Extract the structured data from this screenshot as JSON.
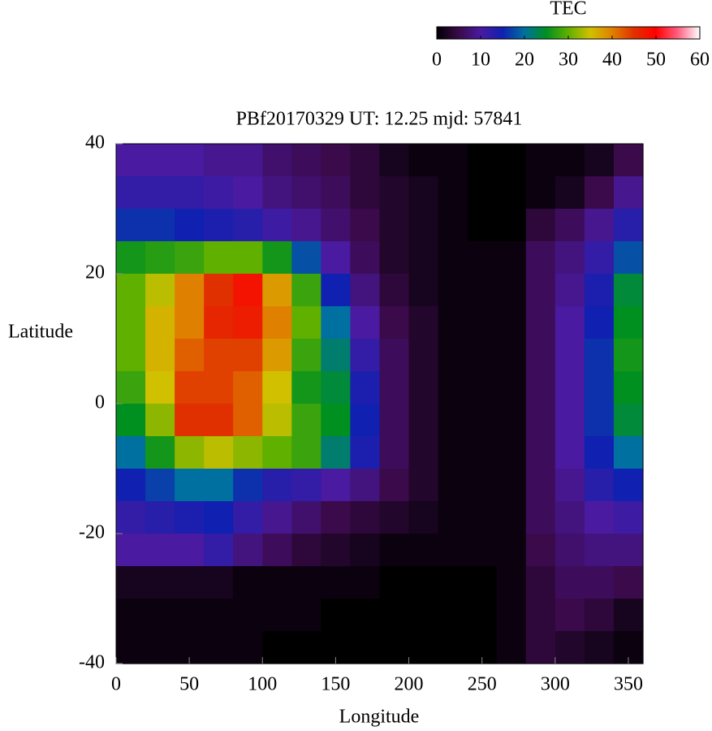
{
  "chart_data": {
    "type": "heatmap",
    "title": "PBf20170329  UT: 12.25  mjd: 57841",
    "x_label": "Longitude",
    "y_label": "Latitude",
    "xlim": [
      0,
      360
    ],
    "ylim": [
      -40,
      40
    ],
    "xticks": [
      0,
      50,
      100,
      150,
      200,
      250,
      300,
      350
    ],
    "yticks": [
      -40,
      -20,
      0,
      20,
      40
    ],
    "x": [
      10,
      30,
      50,
      70,
      90,
      110,
      130,
      150,
      170,
      190,
      210,
      230,
      250,
      270,
      290,
      310,
      330,
      350
    ],
    "y": [
      37.5,
      32.5,
      27.5,
      22.5,
      17.5,
      12.5,
      7.5,
      2.5,
      -2.5,
      -7.5,
      -12.5,
      -17.5,
      -22.5,
      -27.5,
      -32.5,
      -37.5
    ],
    "z": [
      [
        10,
        10,
        10,
        9,
        9,
        7,
        6,
        5,
        4,
        2,
        1,
        1,
        0,
        0,
        1,
        1,
        2,
        5
      ],
      [
        12,
        12,
        12,
        11,
        10,
        8,
        7,
        6,
        4,
        3,
        2,
        1,
        0,
        0,
        1,
        2,
        5,
        9
      ],
      [
        16,
        16,
        15,
        14,
        13,
        11,
        9,
        7,
        5,
        3,
        2,
        1,
        0,
        0,
        4,
        6,
        9,
        13
      ],
      [
        26,
        27,
        28,
        30,
        30,
        26,
        18,
        10,
        6,
        3,
        2,
        1,
        1,
        1,
        6,
        8,
        12,
        18
      ],
      [
        30,
        34,
        40,
        45,
        48,
        38,
        28,
        15,
        8,
        4,
        2,
        1,
        1,
        1,
        6,
        9,
        14,
        24
      ],
      [
        30,
        36,
        40,
        46,
        47,
        40,
        30,
        20,
        10,
        5,
        3,
        1,
        1,
        1,
        6,
        10,
        15,
        25
      ],
      [
        30,
        36,
        42,
        44,
        44,
        38,
        28,
        22,
        12,
        6,
        3,
        1,
        1,
        1,
        6,
        10,
        16,
        26
      ],
      [
        28,
        35,
        44,
        44,
        42,
        35,
        26,
        24,
        14,
        6,
        3,
        1,
        1,
        1,
        6,
        10,
        16,
        25
      ],
      [
        25,
        32,
        45,
        45,
        42,
        34,
        28,
        25,
        15,
        6,
        3,
        1,
        1,
        1,
        6,
        10,
        16,
        24
      ],
      [
        20,
        26,
        32,
        34,
        32,
        30,
        28,
        22,
        14,
        6,
        3,
        1,
        1,
        1,
        6,
        10,
        15,
        20
      ],
      [
        15,
        17,
        20,
        20,
        16,
        13,
        12,
        10,
        8,
        5,
        3,
        1,
        1,
        1,
        6,
        9,
        13,
        15
      ],
      [
        12,
        13,
        14,
        15,
        12,
        9,
        7,
        5,
        4,
        3,
        2,
        1,
        1,
        1,
        6,
        8,
        10,
        11
      ],
      [
        10,
        10,
        10,
        12,
        8,
        6,
        4,
        3,
        2,
        1,
        1,
        1,
        1,
        1,
        5,
        7,
        8,
        8
      ],
      [
        2,
        2,
        2,
        2,
        1,
        1,
        1,
        1,
        1,
        0,
        0,
        0,
        0,
        1,
        4,
        6,
        6,
        5
      ],
      [
        1,
        1,
        1,
        1,
        1,
        1,
        1,
        0,
        0,
        0,
        0,
        0,
        0,
        1,
        4,
        5,
        4,
        2
      ],
      [
        1,
        1,
        1,
        1,
        1,
        0,
        0,
        0,
        0,
        0,
        0,
        0,
        0,
        1,
        4,
        3,
        2,
        1
      ]
    ],
    "colorbar": {
      "label": "TEC",
      "lim": [
        0,
        60
      ],
      "ticks": [
        0,
        10,
        20,
        30,
        40,
        50,
        60
      ]
    },
    "colormap": [
      "#000000",
      "#3a0a4a",
      "#4a1aa0",
      "#1020b0",
      "#0070a0",
      "#009020",
      "#60b000",
      "#d0c000",
      "#e08000",
      "#e03000",
      "#ff0000",
      "#ff6080",
      "#ffffff"
    ]
  }
}
